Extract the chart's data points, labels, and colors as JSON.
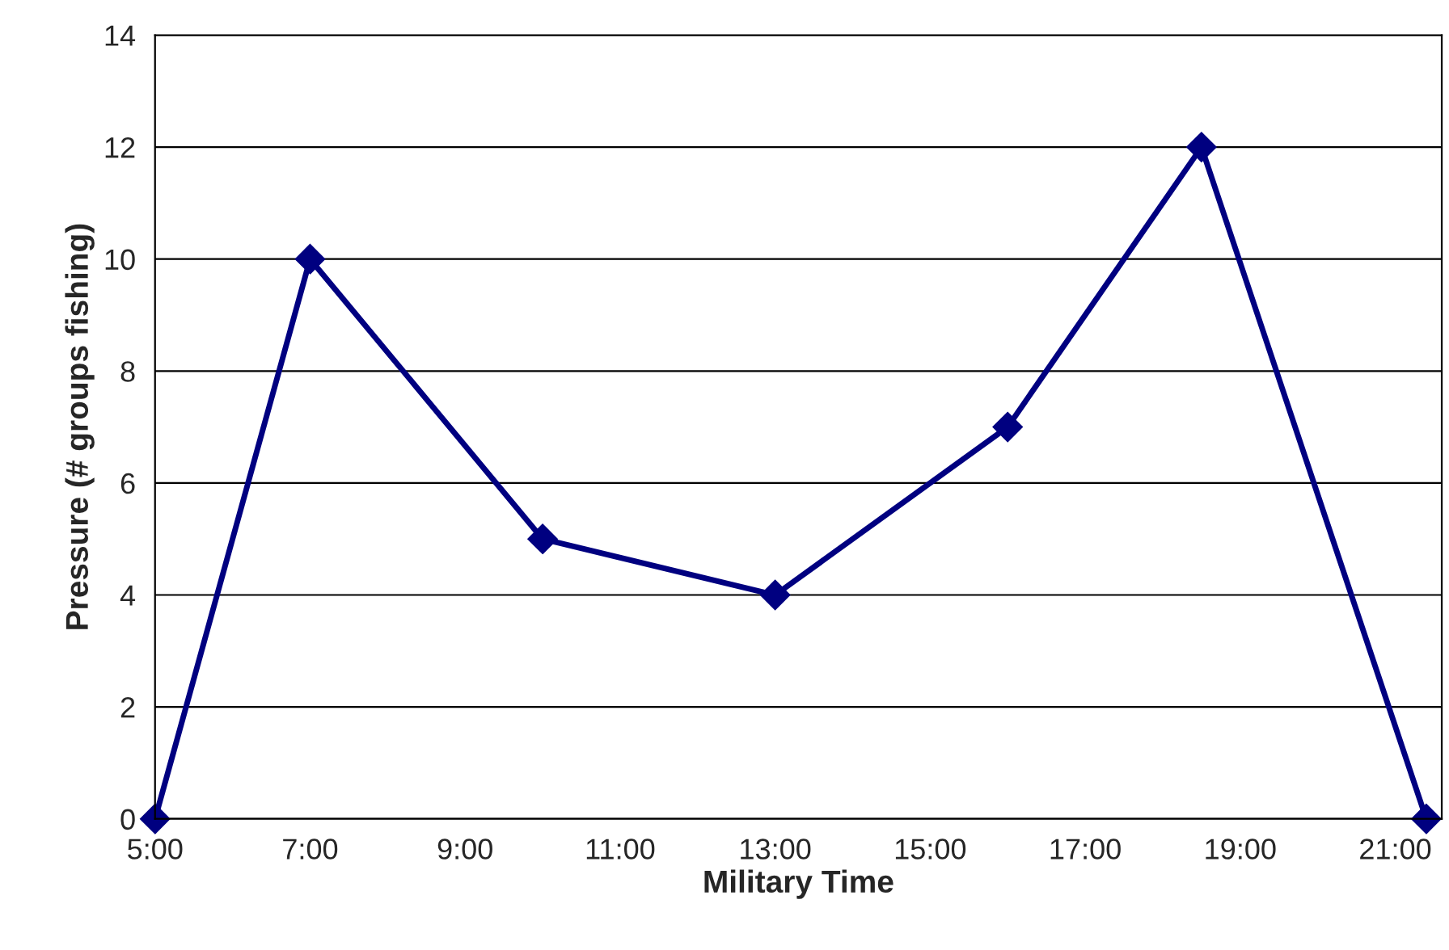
{
  "chart_data": {
    "type": "line",
    "xlabel": "Military Time",
    "ylabel": "Pressure (# groups fishing)",
    "x": [
      5,
      7,
      10,
      13,
      16,
      18.5,
      21.4
    ],
    "series": [
      {
        "color": "#000080",
        "values": [
          0,
          10,
          5,
          4,
          7,
          12,
          0
        ]
      }
    ],
    "xlim": [
      5,
      21.6
    ],
    "xticks": [
      {
        "value": 5,
        "label": "5:00"
      },
      {
        "value": 7,
        "label": "7:00"
      },
      {
        "value": 9,
        "label": "9:00"
      },
      {
        "value": 11,
        "label": "11:00"
      },
      {
        "value": 13,
        "label": "13:00"
      },
      {
        "value": 15,
        "label": "15:00"
      },
      {
        "value": 17,
        "label": "17:00"
      },
      {
        "value": 19,
        "label": "19:00"
      },
      {
        "value": 21,
        "label": "21:00"
      }
    ],
    "ylim": [
      0,
      14
    ],
    "yticks": [
      0,
      2,
      4,
      6,
      8,
      10,
      12,
      14
    ],
    "grid": "y",
    "marker": "diamond",
    "line_style": "solid",
    "legend": false
  }
}
